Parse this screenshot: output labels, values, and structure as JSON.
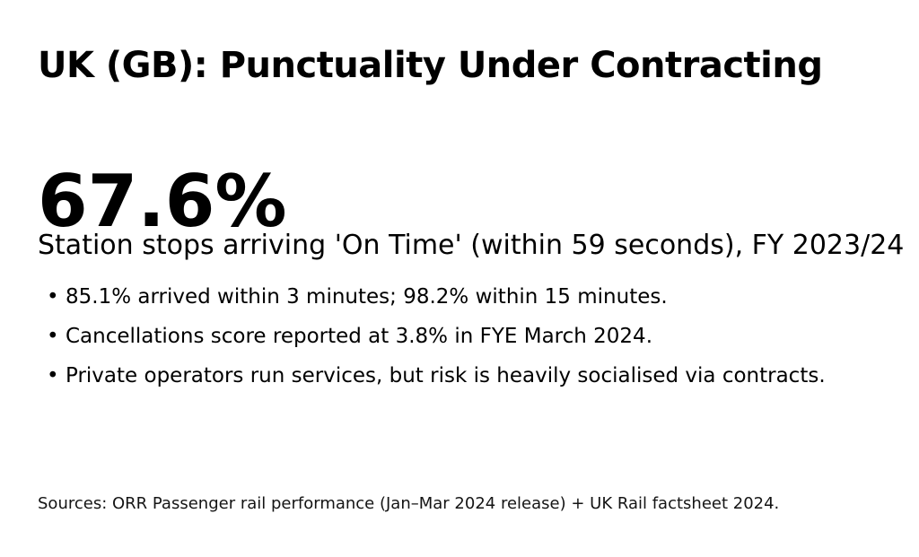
{
  "colors": {
    "background": "#ffffff",
    "text": "#000000",
    "sources_text": "#141414"
  },
  "content": {
    "title": "UK (GB): Punctuality Under Contracting",
    "stat": {
      "value": "67.6%",
      "caption": "Station stops arriving 'On Time' (within 59 seconds), FY 2023/24"
    },
    "bullet_glyph": "•",
    "bullets": [
      "85.1% arrived within 3 minutes; 98.2% within 15 minutes.",
      "Cancellations score reported at 3.8% in FYE March 2024.",
      "Private operators run services, but risk is heavily socialised via contracts."
    ],
    "sources": "Sources: ORR Passenger rail performance (Jan–Mar 2024 release) + UK Rail factsheet 2024."
  }
}
